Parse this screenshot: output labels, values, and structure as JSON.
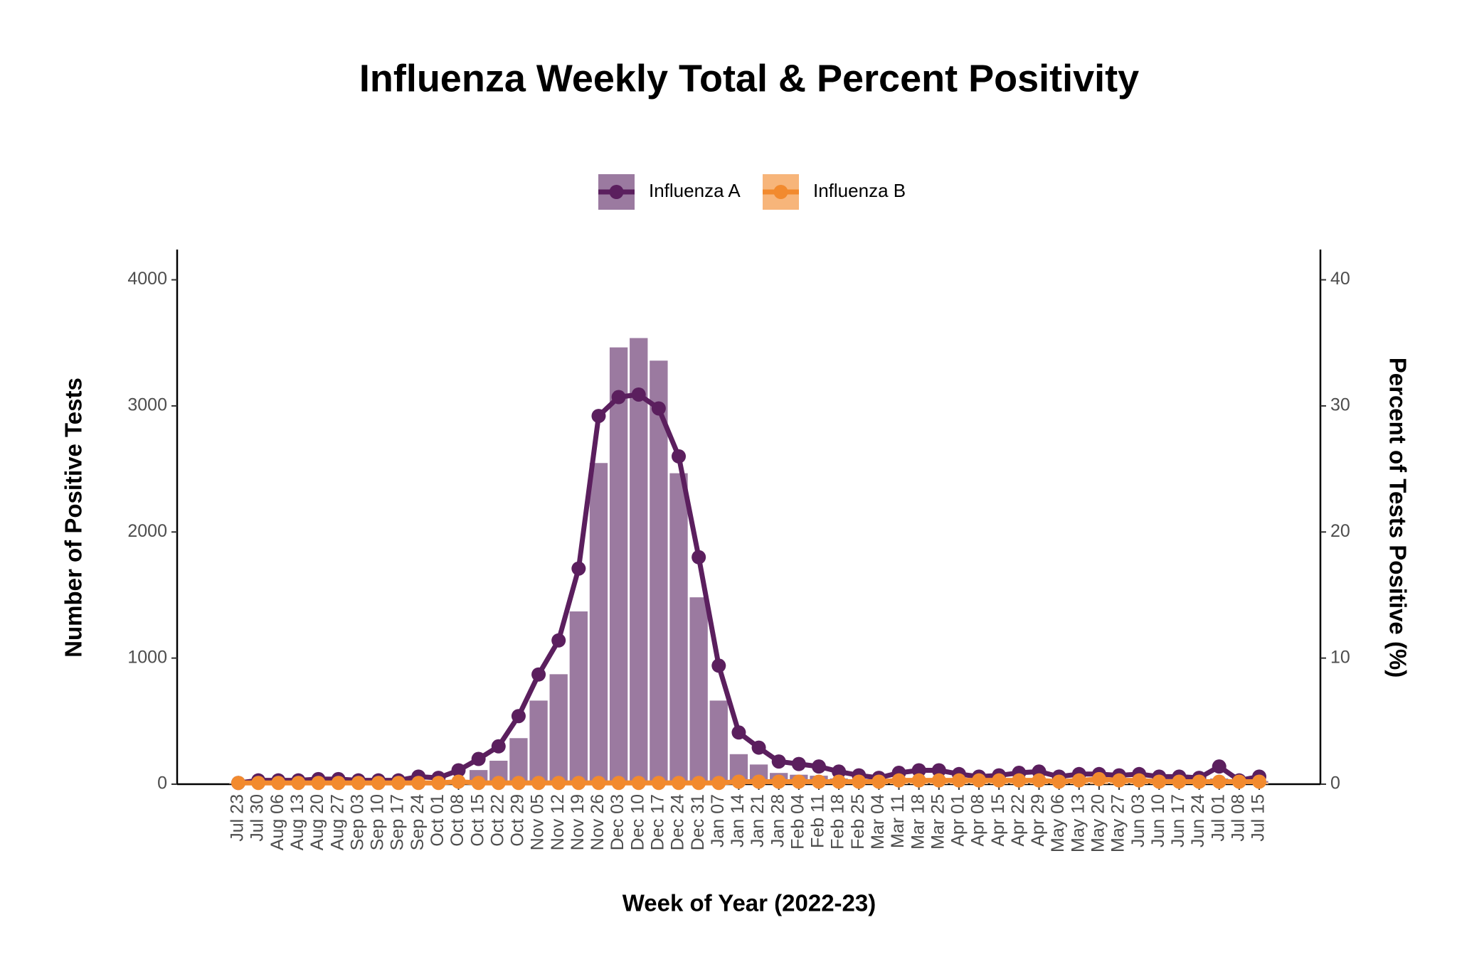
{
  "chart_data": {
    "type": "bar-line",
    "title": "Influenza Weekly Total & Percent Positivity",
    "x_label": "Week of Year (2022-23)",
    "y_label": "Number of Positive Tests",
    "y2_label": "Percent of Tests Positive (%)",
    "categories": [
      "Jul 23",
      "Jul 30",
      "Aug 06",
      "Aug 13",
      "Aug 20",
      "Aug 27",
      "Sep 03",
      "Sep 10",
      "Sep 17",
      "Sep 24",
      "Oct 01",
      "Oct 08",
      "Oct 15",
      "Oct 22",
      "Oct 29",
      "Nov 05",
      "Nov 12",
      "Nov 19",
      "Nov 26",
      "Dec 03",
      "Dec 10",
      "Dec 17",
      "Dec 24",
      "Dec 31",
      "Jan 07",
      "Jan 14",
      "Jan 21",
      "Jan 28",
      "Feb 04",
      "Feb 11",
      "Feb 18",
      "Feb 25",
      "Mar 04",
      "Mar 11",
      "Mar 18",
      "Mar 25",
      "Apr 01",
      "Apr 08",
      "Apr 15",
      "Apr 22",
      "Apr 29",
      "May 06",
      "May 13",
      "May 20",
      "May 27",
      "Jun 03",
      "Jun 10",
      "Jun 17",
      "Jun 24",
      "Jul 01",
      "Jul 08",
      "Jul 15"
    ],
    "series": [
      {
        "name": "Influenza A",
        "bar_color": "#9b7aa0",
        "line_color": "#5b1f5e",
        "values": [
          4,
          8,
          8,
          9,
          12,
          12,
          10,
          10,
          12,
          18,
          20,
          30,
          112,
          186,
          365,
          663,
          872,
          1370,
          2547,
          3464,
          3538,
          3359,
          2466,
          1482,
          663,
          238,
          156,
          89,
          75,
          67,
          45,
          35,
          30,
          40,
          45,
          45,
          38,
          32,
          35,
          40,
          42,
          30,
          35,
          35,
          32,
          35,
          30,
          28,
          25,
          45,
          15,
          25
        ],
        "y2_values": [
          0.1,
          0.3,
          0.3,
          0.3,
          0.4,
          0.4,
          0.3,
          0.3,
          0.3,
          0.6,
          0.5,
          1.1,
          2.0,
          3.0,
          5.4,
          8.7,
          11.4,
          17.1,
          29.2,
          30.7,
          30.9,
          29.8,
          26.0,
          18.0,
          9.4,
          4.1,
          2.9,
          1.8,
          1.6,
          1.4,
          1.0,
          0.7,
          0.5,
          0.9,
          1.1,
          1.1,
          0.8,
          0.6,
          0.7,
          0.9,
          1.0,
          0.6,
          0.8,
          0.8,
          0.7,
          0.8,
          0.6,
          0.6,
          0.5,
          1.4,
          0.3,
          0.6
        ]
      },
      {
        "name": "Influenza B",
        "bar_color": "#f7b57a",
        "line_color": "#f28a2e",
        "values": [
          3,
          4,
          4,
          4,
          4,
          4,
          4,
          4,
          5,
          5,
          6,
          8,
          10,
          10,
          10,
          10,
          10,
          10,
          12,
          12,
          12,
          12,
          12,
          12,
          12,
          14,
          15,
          18,
          20,
          22,
          22,
          22,
          24,
          26,
          28,
          28,
          26,
          26,
          26,
          26,
          24,
          22,
          24,
          26,
          24,
          22,
          20,
          18,
          16,
          18,
          14,
          14
        ],
        "y2_values": [
          0.1,
          0.1,
          0.1,
          0.1,
          0.1,
          0.1,
          0.1,
          0.1,
          0.1,
          0.1,
          0.1,
          0.2,
          0.1,
          0.1,
          0.1,
          0.1,
          0.1,
          0.1,
          0.1,
          0.1,
          0.1,
          0.1,
          0.1,
          0.1,
          0.1,
          0.2,
          0.2,
          0.2,
          0.2,
          0.2,
          0.2,
          0.2,
          0.2,
          0.3,
          0.3,
          0.3,
          0.3,
          0.3,
          0.3,
          0.3,
          0.3,
          0.2,
          0.3,
          0.4,
          0.3,
          0.3,
          0.2,
          0.2,
          0.2,
          0.2,
          0.2,
          0.2
        ]
      }
    ],
    "ylim": [
      0,
      4240
    ],
    "yticks": [
      0,
      1000,
      2000,
      3000,
      4000
    ],
    "y2lim": [
      0,
      42.4
    ],
    "y2ticks": [
      0,
      10,
      20,
      30,
      40
    ],
    "legend": "top"
  }
}
